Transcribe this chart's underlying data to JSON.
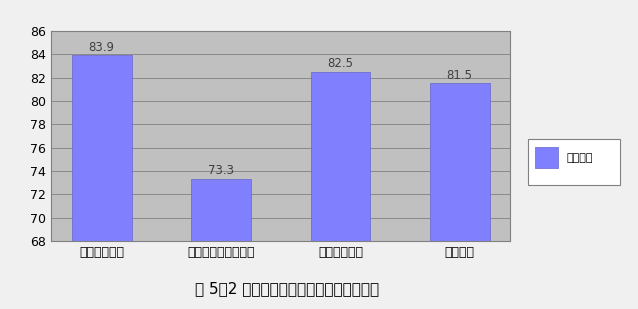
{
  "categories": [
    "绿色施工管理",
    "绿色施工技术与创新",
    "绿色施工成效",
    "综合得分"
  ],
  "values": [
    83.9,
    73.3,
    82.5,
    81.5
  ],
  "bar_color": "#8080ff",
  "bar_edge_color": "#6666cc",
  "ylim": [
    68,
    86
  ],
  "yticks": [
    68,
    70,
    72,
    74,
    76,
    78,
    80,
    82,
    84,
    86
  ],
  "title": "图 5－2 绿色施工三个部分得分与综合得分",
  "title_fontsize": 11,
  "legend_label": "评价得分",
  "plot_bg_color": "#c0c0c0",
  "outer_bg_color": "#f0f0f0",
  "grid_color": "#808080",
  "label_fontsize": 9,
  "value_fontsize": 8.5
}
